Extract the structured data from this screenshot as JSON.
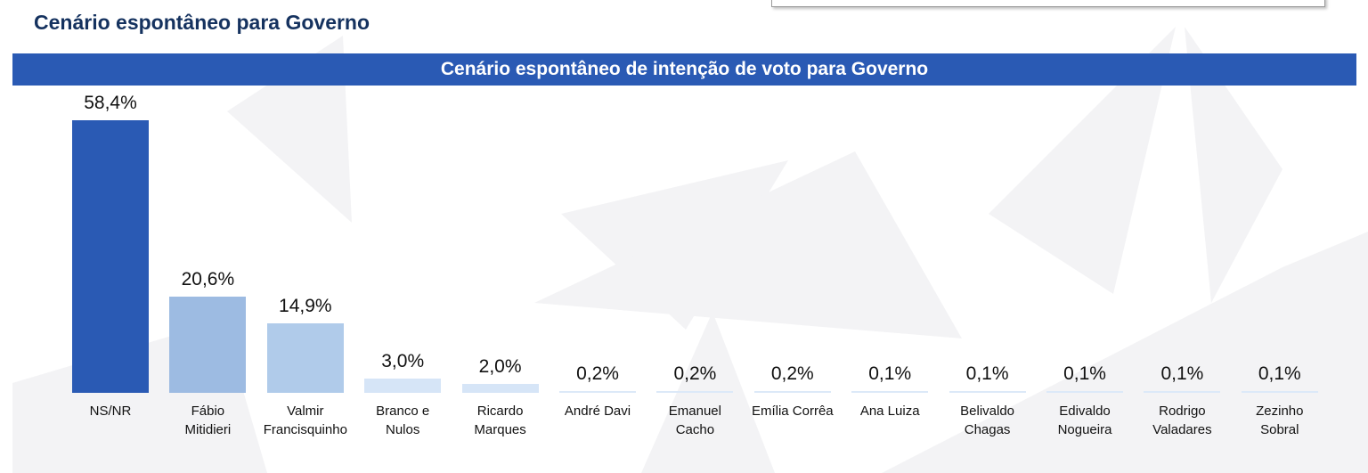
{
  "page_title": "Cenário espontâneo para Governo",
  "chart_data": {
    "type": "bar",
    "title": "Cenário espontâneo de intenção de voto para Governo",
    "xlabel": "",
    "ylabel": "",
    "ylim": [
      0,
      58.4
    ],
    "grid": false,
    "categories": [
      "NS/NR",
      "Fábio\nMitidieri",
      "Valmir\nFrancisquinho",
      "Branco e\nNulos",
      "Ricardo\nMarques",
      "André Davi",
      "Emanuel\nCacho",
      "Emília Corrêa",
      "Ana Luiza",
      "Belivaldo\nChagas",
      "Edivaldo\nNogueira",
      "Rodrigo\nValadares",
      "Zezinho\nSobral"
    ],
    "values": [
      58.4,
      20.6,
      14.9,
      3.0,
      2.0,
      0.2,
      0.2,
      0.2,
      0.1,
      0.1,
      0.1,
      0.1,
      0.1
    ],
    "labels": [
      "58,4%",
      "20,6%",
      "14,9%",
      "3,0%",
      "2,0%",
      "0,2%",
      "0,2%",
      "0,2%",
      "0,1%",
      "0,1%",
      "0,1%",
      "0,1%",
      "0,1%"
    ],
    "colors": [
      "#2a5ab4",
      "#9dbbe2",
      "#b0cbea",
      "#d6e5f7",
      "#d6e5f7",
      "#dce9f8",
      "#dce9f8",
      "#dce9f8",
      "#dce9f8",
      "#dce9f8",
      "#dce9f8",
      "#dce9f8",
      "#dce9f8"
    ]
  }
}
